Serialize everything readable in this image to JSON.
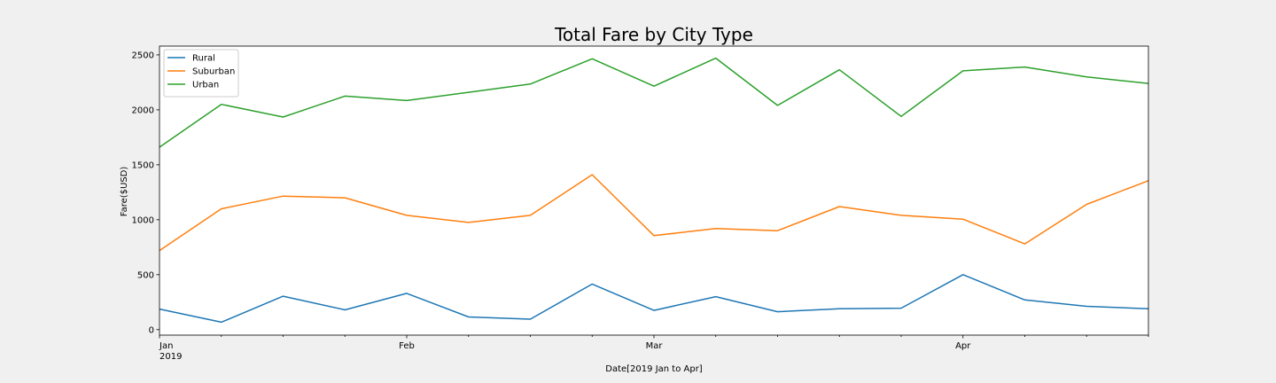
{
  "chart_data": {
    "type": "line",
    "title": "Total Fare by City Type",
    "xlabel": "Date[2019 Jan to Apr]",
    "ylabel": "Fare($USD)",
    "x": [
      "2019-01-06",
      "2019-01-13",
      "2019-01-20",
      "2019-01-27",
      "2019-02-03",
      "2019-02-10",
      "2019-02-17",
      "2019-02-24",
      "2019-03-03",
      "2019-03-10",
      "2019-03-17",
      "2019-03-24",
      "2019-03-31",
      "2019-04-07",
      "2019-04-14",
      "2019-04-21",
      "2019-04-28"
    ],
    "x_tick_labels": [
      {
        "date": "2019-01-06",
        "label": "Jan",
        "sublabel": "2019"
      },
      {
        "date": "2019-02-03",
        "label": "Feb",
        "sublabel": ""
      },
      {
        "date": "2019-03-03",
        "label": "Mar",
        "sublabel": ""
      },
      {
        "date": "2019-04-07",
        "label": "Apr",
        "sublabel": ""
      }
    ],
    "xlim": [
      "2019-01-06",
      "2019-04-28"
    ],
    "ylim": [
      -50,
      2580
    ],
    "y_ticks": [
      0,
      500,
      1000,
      1500,
      2000,
      2500
    ],
    "grid": false,
    "legend_position": "top-left",
    "series": [
      {
        "name": "Rural",
        "color": "#1f77b4",
        "values": [
          187,
          68,
          304,
          180,
          330,
          115,
          95,
          415,
          175,
          300,
          163,
          190,
          195,
          500,
          270,
          212,
          190
        ]
      },
      {
        "name": "Suburban",
        "color": "#ff7f0e",
        "values": [
          720,
          1100,
          1215,
          1200,
          1040,
          975,
          1040,
          1410,
          855,
          920,
          900,
          1120,
          1040,
          1005,
          780,
          1140,
          1355
        ]
      },
      {
        "name": "Urban",
        "color": "#2ca02c",
        "values": [
          1660,
          2050,
          1935,
          2125,
          2085,
          2160,
          2235,
          2465,
          2215,
          2470,
          2040,
          2365,
          1940,
          2355,
          2390,
          2300,
          2240
        ]
      }
    ]
  }
}
